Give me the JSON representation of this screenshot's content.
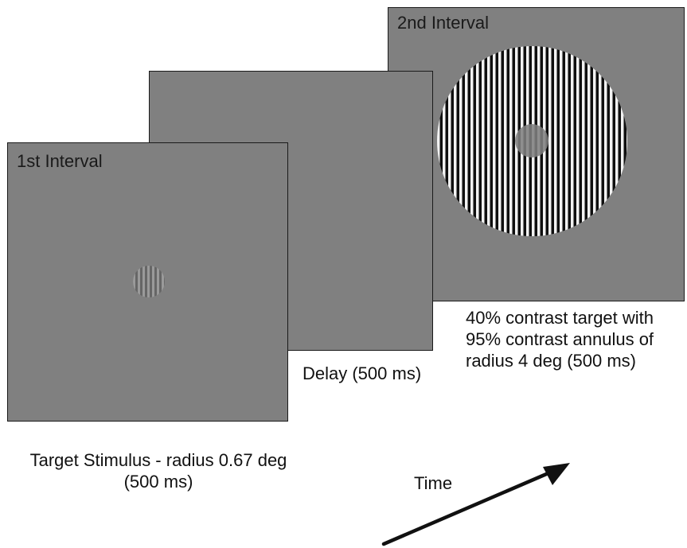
{
  "panels": {
    "first_interval": {
      "title": "1st Interval",
      "caption": "Target Stimulus - radius 0.67 deg\n(500 ms)"
    },
    "delay": {
      "caption": "Delay (500 ms)"
    },
    "second_interval": {
      "title": "2nd Interval",
      "caption": "40% contrast target with\n95% contrast annulus of\nradius 4 deg (500 ms)"
    }
  },
  "time_axis": {
    "label": "Time",
    "icon": "arrow-icon"
  },
  "colors": {
    "screen_gray": "#808080",
    "panel_border": "#1a1a1a",
    "grating_light": "#f2f2f2",
    "grating_dark": "#0f0f0f"
  }
}
